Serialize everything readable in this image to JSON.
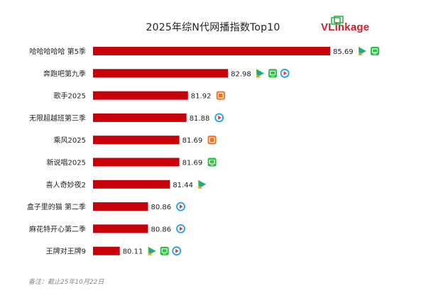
{
  "title": "2025年综N代网播指数Top10",
  "logo_text": "VLinkage",
  "note": "备注：截止25年10月22日",
  "colors": {
    "bar": "#c8000a",
    "iqiyi": "#1fc43b",
    "tencent": "#2b8de8",
    "youku": "#1ea0f5",
    "mango": "#f2721c"
  },
  "chart_data": {
    "type": "bar",
    "orientation": "horizontal",
    "title": "2025年综N代网播指数Top10",
    "categories": [
      "哈哈哈哈哈 第5季",
      "奔跑吧第九季",
      "歌手2025",
      "无限超越班第三季",
      "乘风2025",
      "新说唱2025",
      "喜人奇妙夜2",
      "盒子里的猫 第二季",
      "麻花特开心第二季",
      "王牌对王牌9"
    ],
    "values": [
      85.69,
      82.98,
      81.92,
      81.88,
      81.69,
      81.69,
      81.44,
      80.86,
      80.86,
      80.11
    ],
    "value_labels": [
      "85.69",
      "82.98",
      "81.92",
      "81.88",
      "81.69",
      "81.69",
      "81.44",
      "80.86",
      "80.86",
      "80.11"
    ],
    "platforms": [
      [
        "tencent",
        "iqiyi"
      ],
      [
        "tencent",
        "iqiyi",
        "youku"
      ],
      [
        "mango"
      ],
      [
        "youku"
      ],
      [
        "mango"
      ],
      [
        "iqiyi"
      ],
      [
        "tencent"
      ],
      [
        "youku"
      ],
      [
        "youku"
      ],
      [
        "tencent",
        "iqiyi",
        "youku"
      ]
    ],
    "xlim": [
      79.4,
      85.69
    ],
    "xlabel": "",
    "ylabel": ""
  }
}
